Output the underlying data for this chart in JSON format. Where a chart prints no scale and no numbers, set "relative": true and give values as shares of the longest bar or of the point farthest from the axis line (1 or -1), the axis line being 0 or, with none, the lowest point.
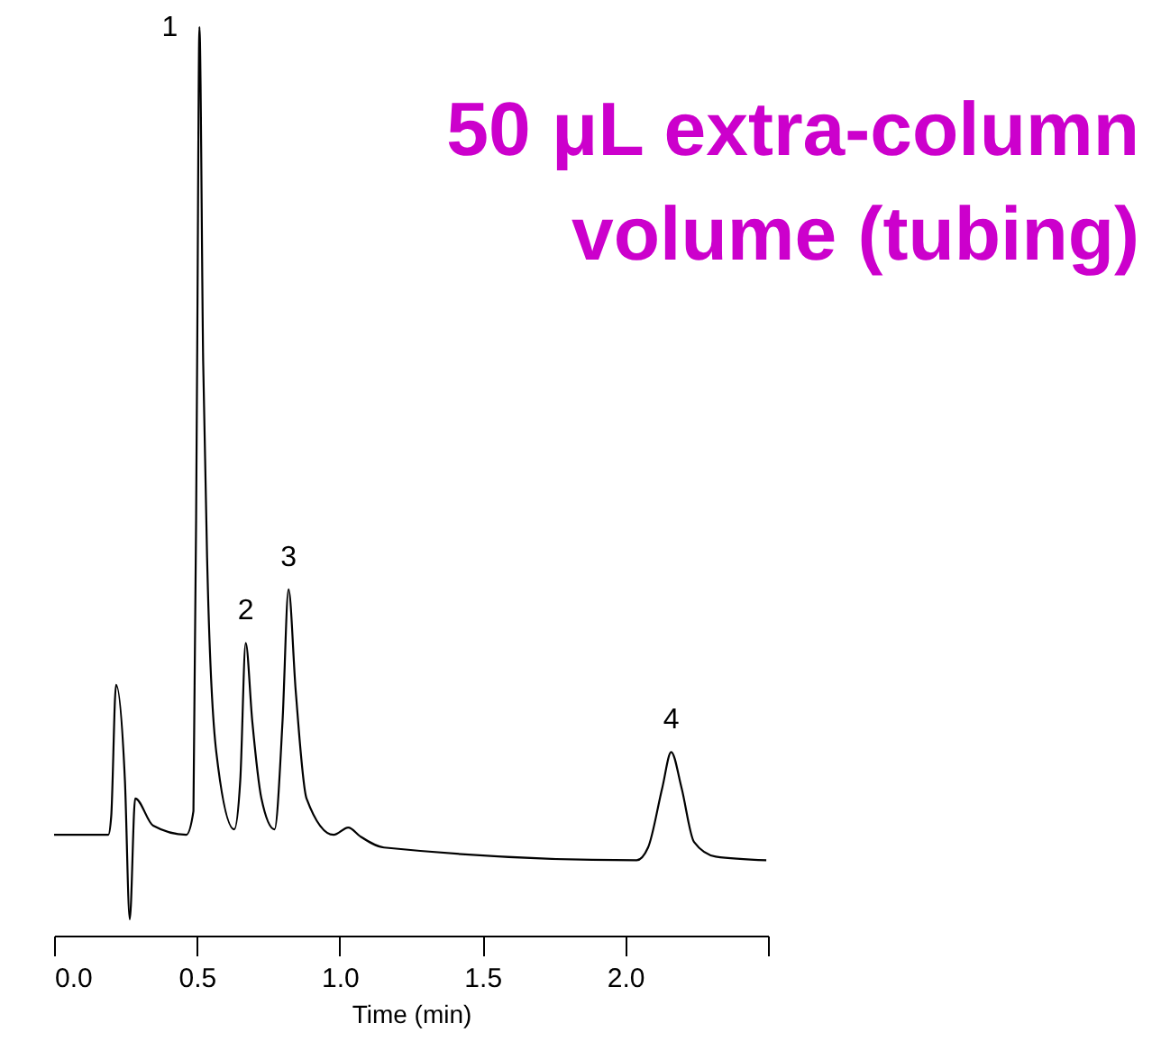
{
  "chart_data": {
    "type": "line",
    "title": "50 μL extra-column\nvolume (tubing)",
    "xlabel": "Time (min)",
    "relative": true,
    "xlim": [
      0,
      2.5
    ],
    "xticks": [
      {
        "value": 0,
        "label": "0.0"
      },
      {
        "value": 0.5,
        "label": "0.5"
      },
      {
        "value": 1,
        "label": "1.0"
      },
      {
        "value": 1.5,
        "label": "1.5"
      },
      {
        "value": 2,
        "label": "2.0"
      },
      {
        "value": 2.5,
        "label": null
      }
    ],
    "series": [
      {
        "color": "#000000",
        "x": [
          0,
          0.19,
          0.2,
          0.217,
          0.248,
          0.265,
          0.284,
          0.347,
          0.463,
          0.488,
          0.501,
          0.509,
          0.522,
          0.537,
          0.568,
          0.631,
          0.652,
          0.671,
          0.694,
          0.726,
          0.772,
          0.8,
          0.821,
          0.846,
          0.884,
          0.979,
          1.03,
          1.073,
          1.155,
          2.04,
          2.08,
          2.13,
          2.161,
          2.197,
          2.241,
          2.317,
          2.494
        ],
        "values": [
          0.111,
          0.111,
          0.131,
          0.276,
          0.171,
          0.018,
          0.151,
          0.121,
          0.111,
          0.137,
          0.633,
          1.0,
          0.633,
          0.401,
          0.202,
          0.117,
          0.171,
          0.322,
          0.236,
          0.151,
          0.117,
          0.236,
          0.381,
          0.27,
          0.151,
          0.111,
          0.119,
          0.109,
          0.097,
          0.083,
          0.097,
          0.163,
          0.202,
          0.163,
          0.103,
          0.087,
          0.083
        ]
      }
    ],
    "annotations": [
      {
        "text": "1",
        "x": 0.509,
        "y": 1.0
      },
      {
        "text": "2",
        "x": 0.671,
        "y": 0.322
      },
      {
        "text": "3",
        "x": 0.821,
        "y": 0.381
      },
      {
        "text": "4",
        "x": 2.161,
        "y": 0.202
      }
    ]
  }
}
